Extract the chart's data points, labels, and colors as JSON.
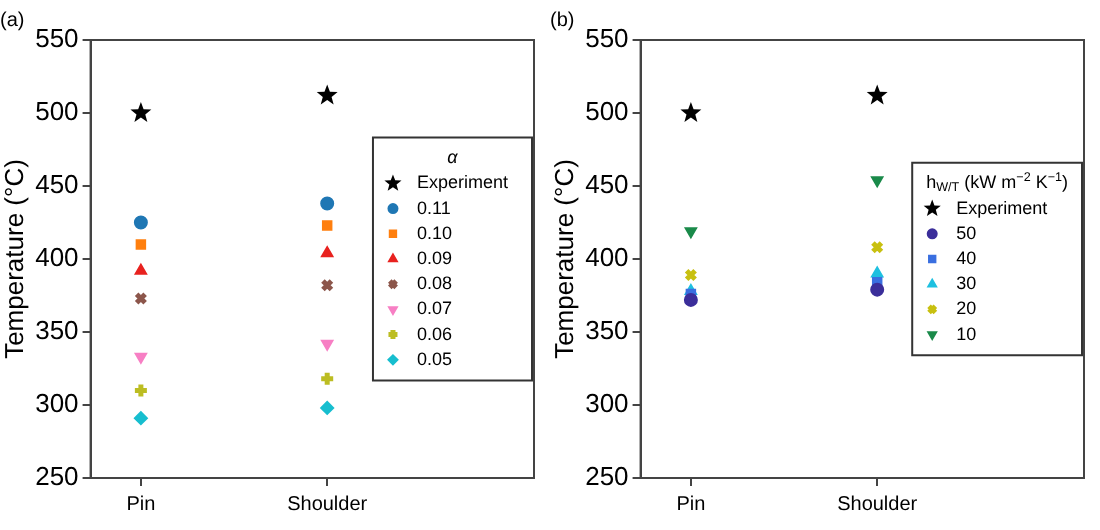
{
  "chart_data": [
    {
      "type": "scatter",
      "title": "(a)",
      "ylabel": "Temperature (°C)",
      "categories": [
        "Pin",
        "Shoulder"
      ],
      "ylim": [
        250,
        550
      ],
      "yticks": [
        250,
        300,
        350,
        400,
        450,
        500,
        550
      ],
      "legend": "right",
      "legend_title": "α",
      "series": [
        {
          "name": "Experiment",
          "color": "#000000",
          "marker": "star",
          "values": [
            500,
            512
          ]
        },
        {
          "name": "0.11",
          "color": "#1f77b4",
          "marker": "circle",
          "values": [
            425,
            438
          ]
        },
        {
          "name": "0.10",
          "color": "#ff7f0e",
          "marker": "square",
          "values": [
            410,
            423
          ]
        },
        {
          "name": "0.09",
          "color": "#e8221f",
          "marker": "triangle",
          "values": [
            392,
            404
          ]
        },
        {
          "name": "0.08",
          "color": "#8c564b",
          "marker": "cross",
          "values": [
            373,
            382
          ]
        },
        {
          "name": "0.07",
          "color": "#f77fc4",
          "marker": "triangle-down",
          "values": [
            333,
            342
          ]
        },
        {
          "name": "0.06",
          "color": "#bcbd22",
          "marker": "plus",
          "values": [
            310,
            318
          ]
        },
        {
          "name": "0.05",
          "color": "#17becf",
          "marker": "diamond",
          "values": [
            291,
            298
          ]
        }
      ]
    },
    {
      "type": "scatter",
      "title": "(b)",
      "ylabel": "Temperature (°C)",
      "categories": [
        "Pin",
        "Shoulder"
      ],
      "ylim": [
        250,
        550
      ],
      "yticks": [
        250,
        300,
        350,
        400,
        450,
        500,
        550
      ],
      "legend": "right",
      "legend_title": "h$_{W/T}$ (kW m$^{−2}$ K$^{−1}$)",
      "series": [
        {
          "name": "Experiment",
          "color": "#000000",
          "marker": "star",
          "values": [
            500,
            512
          ]
        },
        {
          "name": "50",
          "color": "#3b2e9a",
          "marker": "circle",
          "values": [
            372,
            379
          ]
        },
        {
          "name": "40",
          "color": "#3a6fe0",
          "marker": "square",
          "values": [
            376,
            384
          ]
        },
        {
          "name": "30",
          "color": "#1ec0e0",
          "marker": "triangle",
          "values": [
            378,
            390
          ]
        },
        {
          "name": "20",
          "color": "#c8c010",
          "marker": "cross",
          "values": [
            389,
            408
          ]
        },
        {
          "name": "10",
          "color": "#1a8a4a",
          "marker": "triangle-down",
          "values": [
            419,
            454
          ]
        }
      ]
    }
  ]
}
